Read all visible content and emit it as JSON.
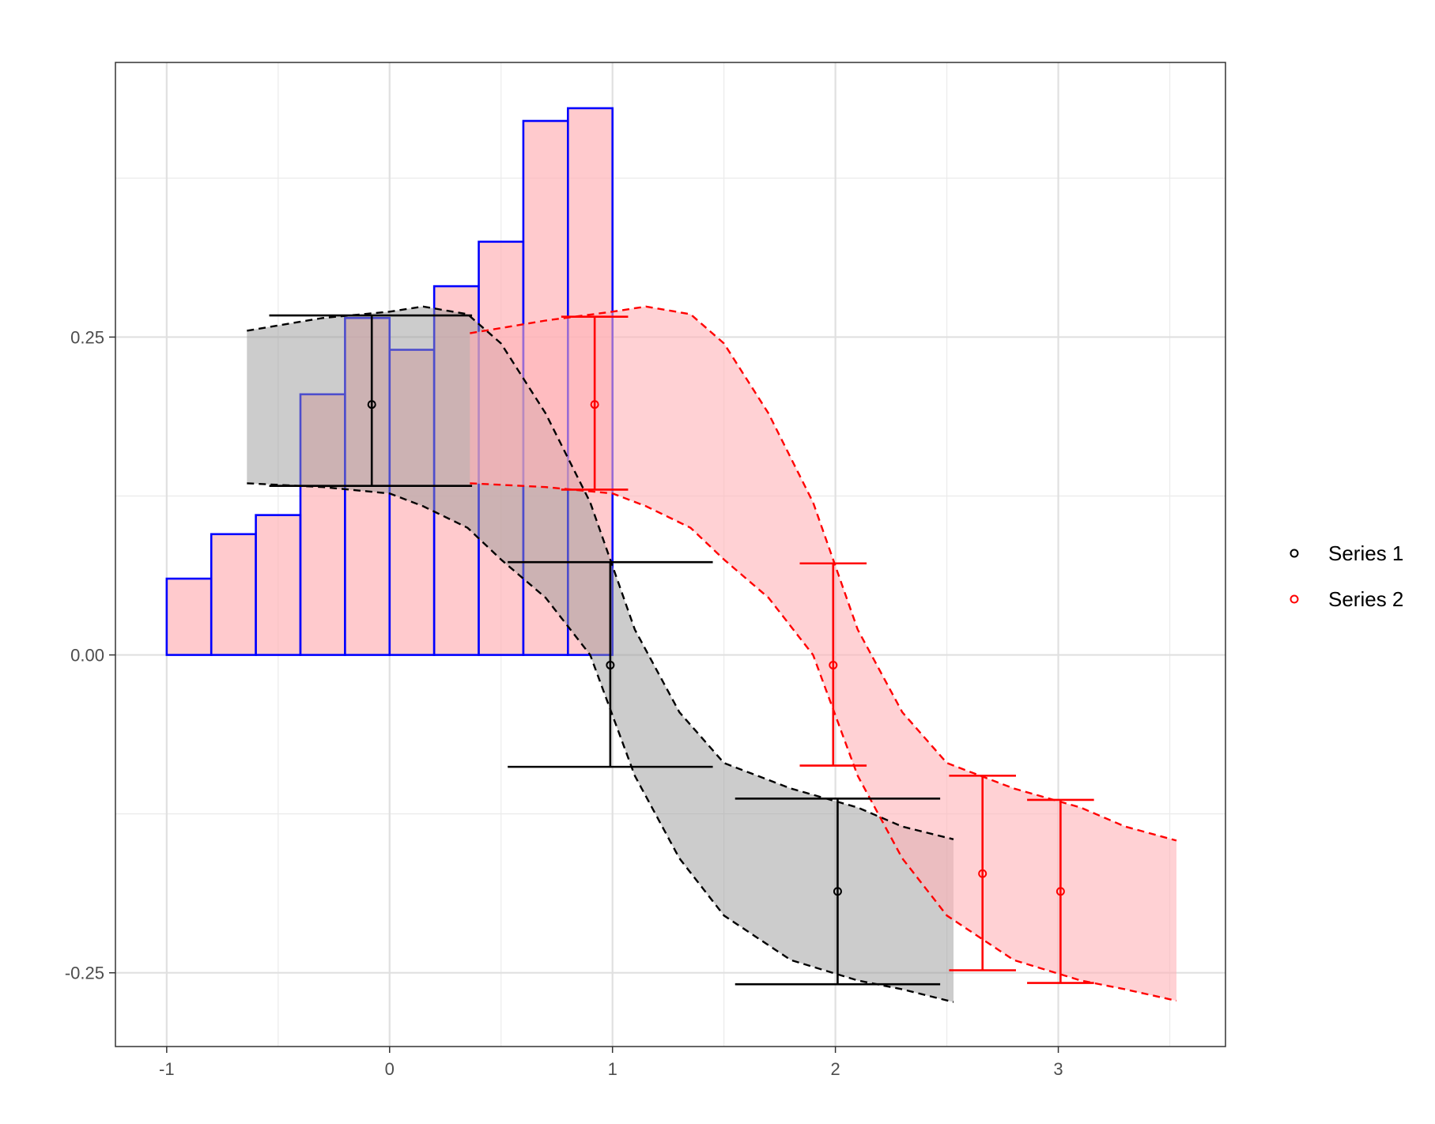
{
  "chart_data": {
    "type": "line",
    "title": "",
    "xlabel": "",
    "ylabel": "",
    "xlim": [
      -1.23,
      3.75
    ],
    "ylim": [
      -0.308,
      0.466
    ],
    "x_ticks": [
      {
        "value": -1,
        "label": "-1"
      },
      {
        "value": 0,
        "label": "0"
      },
      {
        "value": 1,
        "label": "1"
      },
      {
        "value": 2,
        "label": "2"
      },
      {
        "value": 3,
        "label": "3"
      }
    ],
    "y_ticks": [
      {
        "value": 0.25,
        "label": "0.25"
      },
      {
        "value": 0.0,
        "label": "0.00"
      },
      {
        "value": -0.25,
        "label": "-0.25"
      }
    ],
    "grid": true,
    "legend": {
      "position": "right"
    },
    "colors": {
      "series1": "#000000",
      "series2": "#ff0000",
      "hist_outline": "#0000ff",
      "hist_fill": "#ffb3b8",
      "band1_fill": "#999999",
      "band2_fill": "#ffb3b8"
    },
    "histogram": {
      "bin_edges": [
        -1.0,
        -0.8,
        -0.6,
        -0.4,
        -0.2,
        0.0,
        0.2,
        0.4,
        0.6,
        0.8,
        1.0
      ],
      "heights": [
        0.06,
        0.095,
        0.11,
        0.205,
        0.265,
        0.24,
        0.29,
        0.325,
        0.42,
        0.43
      ]
    },
    "series": [
      {
        "name": "Series 1",
        "color": "#000000",
        "points": [
          {
            "x": -0.08,
            "y": 0.197,
            "ymin": 0.133,
            "ymax": 0.267,
            "xmin": -0.54,
            "xmax": 0.37
          },
          {
            "x": 0.99,
            "y": -0.008,
            "ymin": -0.088,
            "ymax": 0.073,
            "xmin": 0.53,
            "xmax": 1.45
          },
          {
            "x": 2.01,
            "y": -0.186,
            "ymin": -0.259,
            "ymax": -0.113,
            "xmin": 1.55,
            "xmax": 2.47
          }
        ],
        "band": {
          "x": [
            -0.64,
            -0.3,
            0.0,
            0.15,
            0.35,
            0.5,
            0.7,
            0.9,
            1.1,
            1.3,
            1.5,
            1.8,
            2.1,
            2.3,
            2.53
          ],
          "upper": [
            0.255,
            0.265,
            0.27,
            0.274,
            0.268,
            0.245,
            0.19,
            0.12,
            0.02,
            -0.045,
            -0.085,
            -0.105,
            -0.12,
            -0.135,
            -0.145
          ],
          "lower": [
            0.135,
            0.132,
            0.127,
            0.117,
            0.1,
            0.075,
            0.045,
            0.0,
            -0.095,
            -0.16,
            -0.205,
            -0.24,
            -0.256,
            -0.263,
            -0.273
          ]
        }
      },
      {
        "name": "Series 2",
        "color": "#ff0000",
        "points": [
          {
            "x": 0.92,
            "y": 0.197,
            "ymin": 0.13,
            "ymax": 0.266,
            "xmin": 0.77,
            "xmax": 1.07
          },
          {
            "x": 1.99,
            "y": -0.008,
            "ymin": -0.087,
            "ymax": 0.072,
            "xmin": 1.84,
            "xmax": 2.14
          },
          {
            "x": 2.66,
            "y": -0.172,
            "ymin": -0.248,
            "ymax": -0.095,
            "xmin": 2.51,
            "xmax": 2.81
          },
          {
            "x": 3.01,
            "y": -0.186,
            "ymin": -0.258,
            "ymax": -0.114,
            "xmin": 2.86,
            "xmax": 3.16
          }
        ],
        "band": {
          "x": [
            0.36,
            0.7,
            1.0,
            1.15,
            1.35,
            1.5,
            1.7,
            1.9,
            2.1,
            2.3,
            2.5,
            2.8,
            3.1,
            3.3,
            3.53
          ],
          "upper": [
            0.253,
            0.263,
            0.27,
            0.274,
            0.268,
            0.245,
            0.19,
            0.12,
            0.02,
            -0.045,
            -0.085,
            -0.105,
            -0.12,
            -0.135,
            -0.146
          ],
          "lower": [
            0.135,
            0.132,
            0.127,
            0.117,
            0.1,
            0.075,
            0.045,
            0.0,
            -0.095,
            -0.16,
            -0.205,
            -0.24,
            -0.256,
            -0.263,
            -0.272
          ]
        }
      }
    ]
  }
}
